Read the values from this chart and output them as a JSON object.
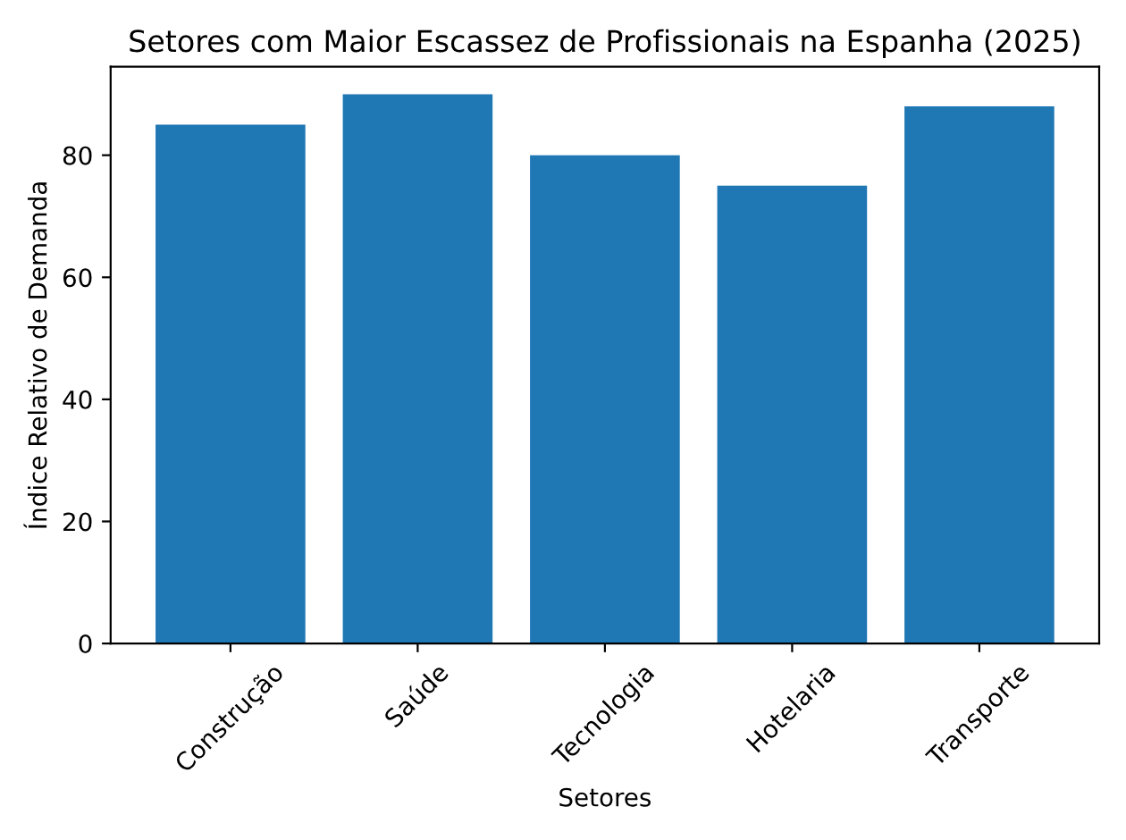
{
  "chart_data": {
    "type": "bar",
    "title": "Setores com Maior Escassez de Profissionais na Espanha (2025)",
    "xlabel": "Setores",
    "ylabel": "Índice Relativo de Demanda",
    "categories": [
      "Construção",
      "Saúde",
      "Tecnologia",
      "Hotelaria",
      "Transporte"
    ],
    "values": [
      85,
      90,
      80,
      75,
      88
    ],
    "color": "#1f77b4",
    "ylim": [
      0,
      94.5
    ],
    "yticks": [
      0,
      20,
      40,
      60,
      80
    ],
    "grid": false
  }
}
